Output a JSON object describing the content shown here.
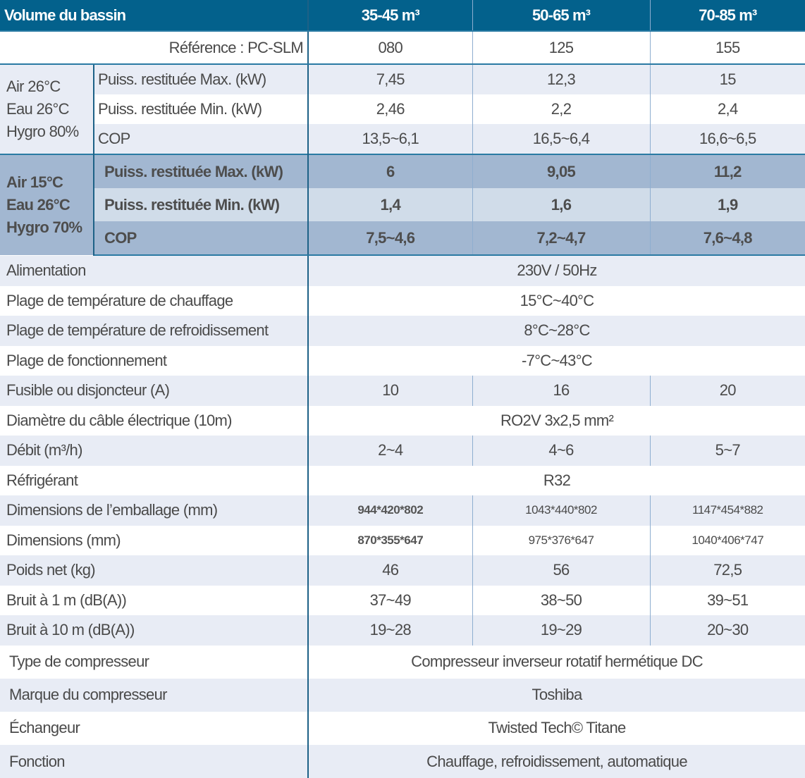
{
  "header": {
    "label": "Volume du bassin",
    "cols": [
      "35-45 m³",
      "50-65 m³",
      "70-85 m³"
    ]
  },
  "reference": {
    "label": "Référence : PC-SLM",
    "values": [
      "080",
      "125",
      "155"
    ]
  },
  "group1": {
    "condition_lines": [
      "Air 26°C",
      "Eau 26°C",
      "Hygro 80%"
    ],
    "rows": [
      {
        "label": "Puiss. restituée Max. (kW)",
        "values": [
          "7,45",
          "12,3",
          "15"
        ]
      },
      {
        "label": "Puiss. restituée Min. (kW)",
        "values": [
          "2,46",
          "2,2",
          "2,4"
        ]
      },
      {
        "label": "COP",
        "values": [
          "13,5~6,1",
          "16,5~6,4",
          "16,6~6,5"
        ]
      }
    ]
  },
  "group2": {
    "condition_lines": [
      "Air 15°C",
      "Eau 26°C",
      "Hygro 70%"
    ],
    "rows": [
      {
        "label": "Puiss. restituée Max. (kW)",
        "values": [
          "6",
          "9,05",
          "11,2"
        ]
      },
      {
        "label": "Puiss. restituée Min. (kW)",
        "values": [
          "1,4",
          "1,6",
          "1,9"
        ]
      },
      {
        "label": "COP",
        "values": [
          "7,5~4,6",
          "7,2~4,7",
          "7,6~4,8"
        ]
      }
    ]
  },
  "specs": [
    {
      "label": "Alimentation",
      "values": [
        "230V / 50Hz"
      ]
    },
    {
      "label": "Plage de température de chauffage",
      "values": [
        "15°C~40°C"
      ]
    },
    {
      "label": "Plage de température de refroidissement",
      "values": [
        "8°C~28°C"
      ]
    },
    {
      "label": "Plage de fonctionnement",
      "values": [
        "-7°C~43°C"
      ]
    },
    {
      "label": "Fusible ou disjoncteur (A)",
      "values": [
        "10",
        "16",
        "20"
      ]
    },
    {
      "label": "Diamètre du câble électrique (10m)",
      "values": [
        "RO2V 3x2,5 mm²"
      ]
    },
    {
      "label": "Débit (m³/h)",
      "values": [
        "2~4",
        "4~6",
        "5~7"
      ]
    },
    {
      "label": "Réfrigérant",
      "values": [
        "R32"
      ]
    },
    {
      "label": "Dimensions de l’emballage (mm)",
      "values": [
        "944*420*802",
        "1043*440*802",
        "1147*454*882"
      ],
      "small": true
    },
    {
      "label": "Dimensions (mm)",
      "values": [
        "870*355*647",
        "975*376*647",
        "1040*406*747"
      ],
      "small": true
    },
    {
      "label": "Poids net (kg)",
      "values": [
        "46",
        "56",
        "72,5"
      ]
    },
    {
      "label": "Bruit à 1 m (dB(A))",
      "values": [
        "37~49",
        "38~50",
        "39~51"
      ]
    },
    {
      "label": "Bruit à 10 m (dB(A))",
      "values": [
        "19~28",
        "19~29",
        "20~30"
      ]
    }
  ],
  "features": [
    {
      "label": "Type de compresseur",
      "values": [
        "Compresseur inverseur rotatif hermétique DC"
      ]
    },
    {
      "label": "Marque du compresseur",
      "values": [
        "Toshiba"
      ]
    },
    {
      "label": "Échangeur",
      "values": [
        "Twisted Tech© Titane"
      ]
    },
    {
      "label": "Fonction",
      "values": [
        "Chauffage, refroidissement, automatique"
      ]
    }
  ],
  "colors": {
    "header": "#03618c",
    "row_light": "#e8ecf5",
    "band_dark": "#a2b7d1",
    "band_mid": "#d0dce9"
  }
}
